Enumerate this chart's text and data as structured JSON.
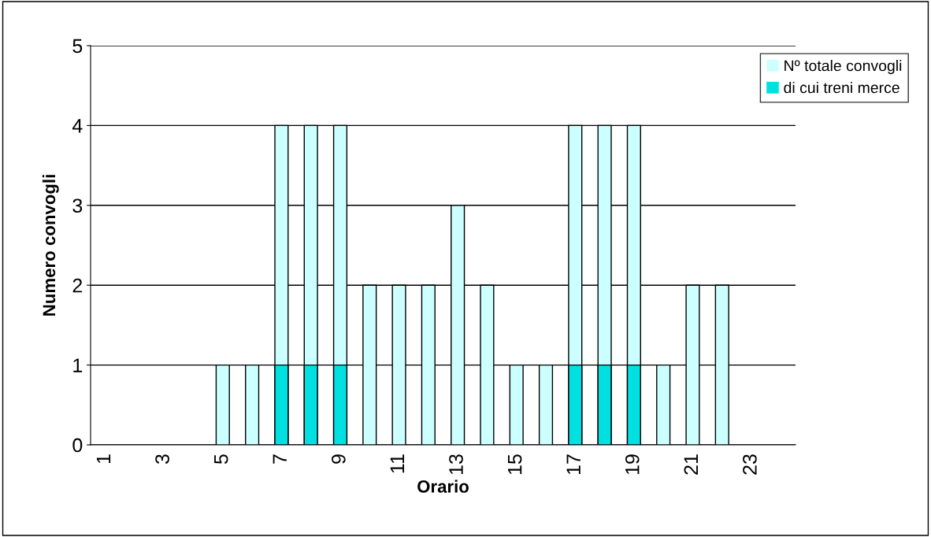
{
  "chart_data": {
    "type": "bar",
    "xlabel": "Orario",
    "ylabel": "Numero convogli",
    "categories": [
      "1",
      null,
      "3",
      null,
      "5",
      null,
      "7",
      null,
      "9",
      null,
      "11",
      null,
      "13",
      null,
      "15",
      null,
      "17",
      null,
      "19",
      null,
      "21",
      null,
      "23",
      null
    ],
    "series": [
      {
        "name": "Nº totale convogli",
        "color": "#ccffff",
        "values": [
          0,
          0,
          0,
          0,
          1,
          1,
          4,
          4,
          4,
          2,
          2,
          2,
          3,
          2,
          1,
          1,
          4,
          4,
          4,
          1,
          2,
          2,
          0,
          0
        ]
      },
      {
        "name": "di cui treni merce",
        "color": "#00e0e0",
        "values": [
          0,
          0,
          0,
          0,
          0,
          0,
          1,
          1,
          1,
          0,
          0,
          0,
          0,
          0,
          0,
          0,
          1,
          1,
          1,
          0,
          0,
          0,
          0,
          0
        ]
      }
    ],
    "ylim": [
      0,
      5
    ],
    "yticks": [
      0,
      1,
      2,
      3,
      4,
      5
    ],
    "grid": "y",
    "legend": "top right"
  }
}
